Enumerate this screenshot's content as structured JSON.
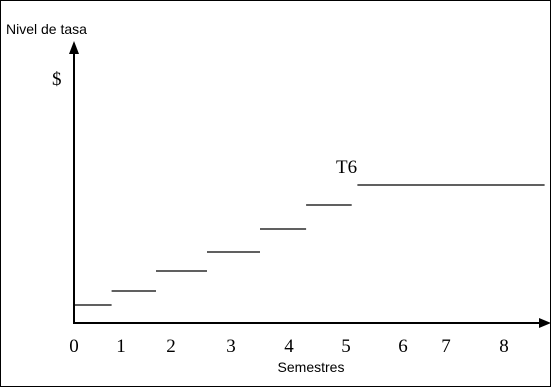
{
  "figure": {
    "title": "Nivel de tasa",
    "y_unit": "$",
    "step_label": "T6",
    "x_axis_title": "Semestres",
    "x_ticks": [
      "0",
      "1",
      "2",
      "3",
      "4",
      "5",
      "6",
      "7",
      "8"
    ]
  },
  "chart_data": {
    "type": "line",
    "description_free": true,
    "steps": [
      {
        "x_start": 0,
        "x_end": 0.8,
        "level": 1
      },
      {
        "x_start": 0.8,
        "x_end": 1.7,
        "level": 2
      },
      {
        "x_start": 1.7,
        "x_end": 2.6,
        "level": 3
      },
      {
        "x_start": 2.6,
        "x_end": 3.5,
        "level": 4
      },
      {
        "x_start": 3.5,
        "x_end": 4.3,
        "level": 5
      },
      {
        "x_start": 4.3,
        "x_end": 5.1,
        "level": 6
      },
      {
        "x_start": 5.2,
        "x_end": 8.7,
        "level": 7
      }
    ],
    "labeled_step": "T6",
    "xlabel": "Semestres",
    "ylabel": "$"
  },
  "colors": {
    "line": "#000000",
    "background": "#ffffff"
  }
}
